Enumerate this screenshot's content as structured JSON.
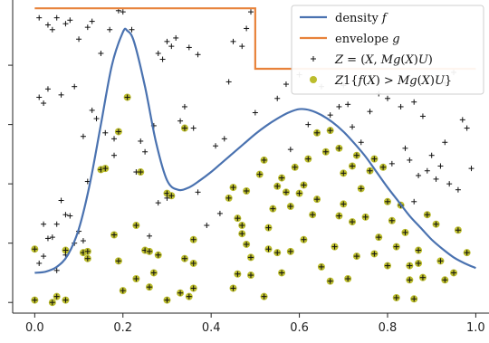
{
  "chart_data": {
    "type": "scatter",
    "xlim": [
      -0.05,
      1.03
    ],
    "ylim": [
      -0.09,
      2.55
    ],
    "x_ticks": [
      0.0,
      0.2,
      0.4,
      0.6,
      0.8,
      1.0
    ],
    "x_tick_labels": [
      "0.0",
      "0.2",
      "0.4",
      "0.6",
      "0.8",
      "1.0"
    ],
    "y_tick_values": [
      0.0,
      0.5,
      1.0,
      1.5,
      2.0
    ],
    "legend_position": "top-right",
    "colors": {
      "density": "#4a72b0",
      "envelope": "#e8823a",
      "points": "#111111",
      "accepted": "#bcbd2d"
    },
    "series": [
      {
        "name": "density f",
        "legend_label": "density 𝑓",
        "kind": "line",
        "x": [
          0.0,
          0.025,
          0.05,
          0.075,
          0.1,
          0.125,
          0.15,
          0.175,
          0.2,
          0.21,
          0.225,
          0.25,
          0.275,
          0.3,
          0.325,
          0.35,
          0.375,
          0.4,
          0.425,
          0.45,
          0.475,
          0.5,
          0.525,
          0.55,
          0.575,
          0.6,
          0.625,
          0.65,
          0.675,
          0.7,
          0.725,
          0.75,
          0.775,
          0.8,
          0.825,
          0.85,
          0.875,
          0.9,
          0.925,
          0.95,
          0.975,
          1.0
        ],
        "y": [
          0.25,
          0.26,
          0.3,
          0.4,
          0.62,
          1.0,
          1.5,
          2.0,
          2.28,
          2.29,
          2.2,
          1.82,
          1.35,
          1.03,
          0.95,
          0.97,
          1.03,
          1.1,
          1.18,
          1.26,
          1.34,
          1.42,
          1.49,
          1.55,
          1.6,
          1.63,
          1.62,
          1.58,
          1.52,
          1.44,
          1.34,
          1.23,
          1.1,
          0.97,
          0.85,
          0.73,
          0.63,
          0.53,
          0.45,
          0.38,
          0.33,
          0.29
        ]
      },
      {
        "name": "envelope g",
        "legend_label": "envelope 𝑔",
        "kind": "step",
        "x": [
          0.0,
          0.5,
          0.5,
          1.0
        ],
        "y": [
          2.48,
          2.48,
          1.97,
          1.97
        ]
      },
      {
        "name": "Z = (X, Mg(X)U)",
        "legend_label": "𝑍 = (𝑋, 𝑀𝑔(𝑋)𝑈)",
        "kind": "scatter",
        "marker": "plus",
        "x": [
          0.01,
          0.03,
          0.04,
          0.05,
          0.07,
          0.08,
          0.1,
          0.12,
          0.13,
          0.15,
          0.17,
          0.19,
          0.2,
          0.22,
          0.28,
          0.29,
          0.3,
          0.31,
          0.32,
          0.35,
          0.37,
          0.45,
          0.47,
          0.48,
          0.49,
          0.6,
          0.65,
          0.7,
          0.71,
          0.76,
          0.78,
          0.8,
          0.83,
          0.86,
          0.88,
          0.93,
          0.95,
          0.97,
          0.98,
          0.01,
          0.03,
          0.02,
          0.06,
          0.09,
          0.11,
          0.13,
          0.14,
          0.16,
          0.18,
          0.24,
          0.25,
          0.27,
          0.33,
          0.34,
          0.36,
          0.41,
          0.43,
          0.44,
          0.5,
          0.55,
          0.57,
          0.62,
          0.67,
          0.69,
          0.72,
          0.74,
          0.84,
          0.85,
          0.87,
          0.89,
          0.9,
          0.91,
          0.92,
          0.94,
          0.96,
          0.99,
          0.02,
          0.04,
          0.05,
          0.07,
          0.08,
          0.1,
          0.11,
          0.06,
          0.09,
          0.03,
          0.01,
          0.02,
          0.05,
          0.07,
          0.12,
          0.18,
          0.23,
          0.26,
          0.28,
          0.3,
          0.37,
          0.39,
          0.42,
          0.58,
          0.81,
          0.86,
          0.93
        ],
        "y": [
          2.4,
          2.34,
          2.3,
          2.4,
          2.35,
          2.38,
          2.22,
          2.32,
          2.37,
          2.1,
          2.3,
          2.46,
          2.45,
          2.3,
          2.1,
          2.05,
          2.2,
          2.16,
          2.23,
          2.15,
          2.09,
          2.2,
          2.16,
          2.31,
          2.45,
          1.92,
          1.82,
          1.83,
          1.67,
          1.61,
          1.76,
          1.72,
          1.65,
          1.69,
          1.57,
          1.85,
          1.94,
          1.54,
          1.47,
          1.73,
          1.8,
          1.68,
          1.75,
          1.82,
          1.4,
          1.62,
          1.55,
          1.43,
          1.24,
          1.36,
          1.27,
          1.49,
          1.53,
          1.65,
          1.47,
          1.32,
          1.38,
          1.86,
          1.6,
          1.72,
          1.84,
          1.5,
          1.58,
          1.65,
          1.48,
          1.35,
          1.3,
          1.2,
          1.07,
          1.11,
          1.24,
          1.04,
          1.15,
          1.0,
          0.95,
          1.13,
          0.66,
          0.55,
          0.66,
          0.74,
          0.73,
          0.6,
          0.52,
          0.86,
          0.5,
          0.54,
          0.33,
          0.39,
          0.27,
          0.4,
          1.02,
          1.38,
          1.1,
          0.56,
          0.84,
          0.88,
          0.93,
          0.65,
          0.75,
          1.29,
          1.17,
          0.85,
          1.35
        ]
      },
      {
        "name": "Z1{f(X) > Mg(X)U}",
        "legend_label": "𝑍1{𝑓(𝑋) > 𝑀𝑔(𝑋)𝑈}",
        "kind": "scatter",
        "marker": "dot-plus",
        "x": [
          0.0,
          0.04,
          0.05,
          0.07,
          0.11,
          0.12,
          0.12,
          0.15,
          0.16,
          0.18,
          0.19,
          0.19,
          0.2,
          0.21,
          0.23,
          0.23,
          0.24,
          0.25,
          0.26,
          0.27,
          0.28,
          0.3,
          0.3,
          0.31,
          0.33,
          0.34,
          0.35,
          0.36,
          0.36,
          0.44,
          0.45,
          0.45,
          0.46,
          0.47,
          0.47,
          0.48,
          0.48,
          0.49,
          0.49,
          0.51,
          0.52,
          0.53,
          0.53,
          0.54,
          0.55,
          0.55,
          0.56,
          0.56,
          0.57,
          0.58,
          0.58,
          0.59,
          0.6,
          0.61,
          0.61,
          0.62,
          0.63,
          0.64,
          0.64,
          0.65,
          0.66,
          0.67,
          0.67,
          0.68,
          0.69,
          0.69,
          0.7,
          0.7,
          0.71,
          0.72,
          0.72,
          0.73,
          0.73,
          0.74,
          0.75,
          0.76,
          0.77,
          0.77,
          0.78,
          0.79,
          0.8,
          0.8,
          0.81,
          0.82,
          0.82,
          0.83,
          0.84,
          0.85,
          0.85,
          0.86,
          0.87,
          0.87,
          0.88,
          0.89,
          0.91,
          0.92,
          0.93,
          0.95,
          0.96,
          0.98,
          0.0,
          0.07,
          0.26,
          0.34,
          0.36,
          0.46,
          0.52
        ],
        "y": [
          0.02,
          0.0,
          0.05,
          0.02,
          0.42,
          0.37,
          0.43,
          1.12,
          1.13,
          0.57,
          0.35,
          1.44,
          0.1,
          1.73,
          0.65,
          0.2,
          1.1,
          0.44,
          0.13,
          0.25,
          0.4,
          0.02,
          0.92,
          0.9,
          0.08,
          0.37,
          0.05,
          0.53,
          0.12,
          0.88,
          0.97,
          0.12,
          0.71,
          0.65,
          0.58,
          0.49,
          0.94,
          0.23,
          0.38,
          1.08,
          1.2,
          0.63,
          0.45,
          0.79,
          0.98,
          0.42,
          1.05,
          0.25,
          0.93,
          0.43,
          0.81,
          1.14,
          0.92,
          0.99,
          0.53,
          1.21,
          0.74,
          1.43,
          0.87,
          0.3,
          1.27,
          1.45,
          0.18,
          0.47,
          1.3,
          0.73,
          1.09,
          0.83,
          0.2,
          1.15,
          0.68,
          1.24,
          0.39,
          0.96,
          0.72,
          1.11,
          1.21,
          0.41,
          0.55,
          1.14,
          0.31,
          0.85,
          0.69,
          0.04,
          0.47,
          0.82,
          0.59,
          0.31,
          0.19,
          0.03,
          0.44,
          0.33,
          0.21,
          0.74,
          0.66,
          0.35,
          0.19,
          0.25,
          0.61,
          0.42,
          0.45,
          0.44,
          0.43,
          1.47,
          0.33,
          0.24,
          0.05
        ]
      }
    ]
  }
}
